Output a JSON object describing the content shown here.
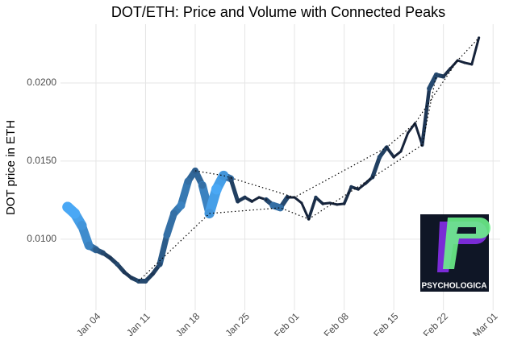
{
  "chart_data": {
    "type": "line",
    "title": "DOT/ETH: Price and Volume with Connected Peaks",
    "y_label": "DOT price in ETH",
    "x": [
      "Dec 31",
      "Jan 01",
      "Jan 02",
      "Jan 03",
      "Jan 04",
      "Jan 05",
      "Jan 06",
      "Jan 07",
      "Jan 08",
      "Jan 09",
      "Jan 10",
      "Jan 11",
      "Jan 12",
      "Jan 13",
      "Jan 14",
      "Jan 15",
      "Jan 16",
      "Jan 17",
      "Jan 18",
      "Jan 19",
      "Jan 20",
      "Jan 21",
      "Jan 22",
      "Jan 23",
      "Jan 24",
      "Jan 25",
      "Jan 26",
      "Jan 27",
      "Jan 28",
      "Jan 29",
      "Jan 30",
      "Jan 31",
      "Feb 01",
      "Feb 02",
      "Feb 03",
      "Feb 04",
      "Feb 05",
      "Feb 06",
      "Feb 07",
      "Feb 08",
      "Feb 09",
      "Feb 10",
      "Feb 11",
      "Feb 12",
      "Feb 13",
      "Feb 14",
      "Feb 15",
      "Feb 16",
      "Feb 17",
      "Feb 18",
      "Feb 19",
      "Feb 20",
      "Feb 21",
      "Feb 22",
      "Feb 23",
      "Feb 24",
      "Feb 25",
      "Feb 26",
      "Feb 27"
    ],
    "series": [
      {
        "values": [
          0.01206,
          0.01165,
          0.01088,
          0.00959,
          0.00933,
          0.00912,
          0.00881,
          0.0084,
          0.00789,
          0.00753,
          0.00732,
          0.00732,
          0.00778,
          0.0084,
          0.01026,
          0.01165,
          0.01216,
          0.01371,
          0.01438,
          0.01345,
          0.01165,
          0.0132,
          0.01407,
          0.01387,
          0.01242,
          0.01268,
          0.01242,
          0.01268,
          0.01253,
          0.01216,
          0.01201,
          0.01268,
          0.01268,
          0.01232,
          0.01129,
          0.01268,
          0.01227,
          0.01232,
          0.01222,
          0.01227,
          0.01335,
          0.0132,
          0.01356,
          0.01397,
          0.01526,
          0.01588,
          0.01526,
          0.01562,
          0.0168,
          0.01742,
          0.01603,
          0.01964,
          0.02052,
          0.02041,
          0.02093,
          0.02144,
          0.02129,
          0.02119,
          0.02289
        ],
        "volume": [
          9,
          9,
          8,
          7,
          5,
          4,
          3,
          4,
          3,
          3,
          4,
          4,
          3,
          4,
          6,
          6,
          7,
          6,
          5,
          6,
          8,
          9,
          8,
          4,
          3,
          3,
          2,
          2,
          2,
          6,
          6,
          2,
          2,
          2,
          2,
          3,
          2,
          2,
          2,
          2,
          3,
          2,
          2,
          3,
          4,
          3,
          2,
          2,
          2,
          2,
          2,
          4,
          4,
          3,
          2,
          2,
          2,
          2,
          2
        ],
        "color_low": "#16233a",
        "color_high": "#4aa8f5"
      }
    ],
    "peaks": [
      "Jan 18",
      "Jan 22",
      "Feb 01",
      "Feb 14",
      "Feb 18",
      "Feb 24",
      "Feb 27"
    ],
    "troughs": [
      "Jan 10",
      "Jan 20",
      "Jan 30",
      "Feb 03",
      "Feb 19",
      "Feb 21"
    ],
    "xlim": [
      "Dec 30",
      "Mar 02"
    ],
    "xticks": [
      "Jan 04",
      "Jan 11",
      "Jan 18",
      "Jan 25",
      "Feb 01",
      "Feb 08",
      "Feb 15",
      "Feb 22",
      "Mar 01"
    ],
    "ylim": [
      0.00546,
      0.02376
    ],
    "yticks": [
      {
        "value": 0.01,
        "label": "0.0100"
      },
      {
        "value": 0.015,
        "label": "0.0150"
      },
      {
        "value": 0.02,
        "label": "0.0200"
      }
    ],
    "grid": true,
    "logo": "PSYCHOLOGICA"
  }
}
